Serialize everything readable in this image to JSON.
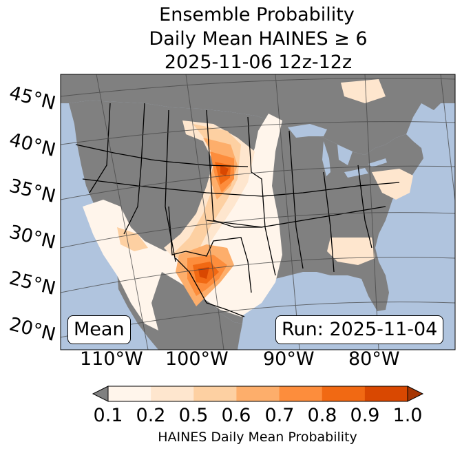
{
  "title": {
    "line1": "Ensemble Probability",
    "line2": "Daily Mean HAINES ≥ 6",
    "line3": "2025-11-06 12z-12z"
  },
  "map": {
    "lat_labels": [
      "45°N",
      "40°N",
      "35°N",
      "30°N",
      "25°N",
      "20°N"
    ],
    "lon_labels": [
      "110°W",
      "100°W",
      "90°W",
      "80°W"
    ],
    "colors": {
      "ocean": "#b0c4de",
      "land": "#808080",
      "border": "#000000",
      "grid": "#444444"
    }
  },
  "boxes": {
    "left": "Mean",
    "right": "Run: 2025-11-04"
  },
  "colorbar": {
    "tick_labels": [
      "0.1",
      "0.2",
      "0.5",
      "0.6",
      "0.7",
      "0.8",
      "0.9",
      "1.0"
    ],
    "colors": [
      "#fff5eb",
      "#fee6ce",
      "#fdd0a2",
      "#fdae6b",
      "#fd8d3c",
      "#f16913",
      "#d94801"
    ],
    "under_color": "#808080",
    "over_color": "#a63603",
    "label": "HAINES Daily Mean Probability"
  }
}
